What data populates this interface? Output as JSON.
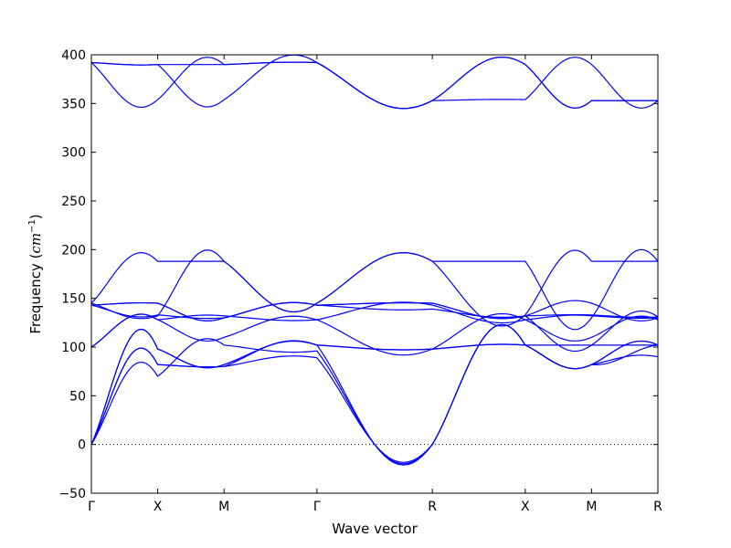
{
  "chart_data": {
    "type": "line",
    "title": "",
    "xlabel": "Wave vector",
    "ylabel": "Frequency (",
    "ylabel_unit": "cm",
    "ylabel_unit_exp": "−1",
    "ylabel_close": ")",
    "ylim": [
      -50,
      400
    ],
    "yticks": [
      -50,
      0,
      50,
      100,
      150,
      200,
      250,
      300,
      350,
      400
    ],
    "ytick_labels": [
      "−50",
      "0",
      "50",
      "100",
      "150",
      "200",
      "250",
      "300",
      "350",
      "400"
    ],
    "x_positions": [
      0,
      0.5,
      1.0,
      1.7,
      2.57,
      3.27,
      3.77,
      4.27
    ],
    "xticks": [
      "Γ",
      "X",
      "M",
      "Γ",
      "R",
      "X",
      "M",
      "R"
    ],
    "xlim": [
      0,
      4.27
    ],
    "line_color": "#0000ff",
    "zero_line": true,
    "grid": false,
    "series": [
      {
        "segments": [
          [
            0,
            98,
            98
          ],
          [
            98,
            82,
            82
          ],
          [
            82,
            102,
            102
          ],
          [
            102,
            98,
            98
          ],
          [
            98,
            102,
            102
          ],
          [
            102,
            102,
            102
          ],
          [
            102,
            102,
            102
          ]
        ]
      },
      {
        "segments": [
          [
            0,
            98,
            98
          ],
          [
            98,
            82,
            82
          ],
          [
            82,
            102,
            102
          ],
          [
            102,
            98,
            98
          ],
          [
            98,
            102,
            102
          ],
          [
            102,
            82,
            82
          ],
          [
            82,
            90,
            102
          ]
        ]
      },
      {
        "segments": [
          [
            0,
            82,
            82
          ],
          [
            82,
            80,
            80
          ],
          [
            80,
            89,
            89
          ],
          [
            89,
            0,
            0
          ],
          [
            0,
            102,
            102
          ],
          [
            102,
            82,
            82
          ],
          [
            82,
            90,
            90
          ]
        ]
      },
      {
        "segments": [
          [
            0,
            82,
            82
          ],
          [
            82,
            80,
            80
          ],
          [
            80,
            102,
            102
          ],
          [
            102,
            0,
            0
          ],
          [
            0,
            102,
            102
          ],
          [
            102,
            82,
            82
          ],
          [
            82,
            102,
            102
          ]
        ]
      },
      {
        "segments": [
          [
            0,
            70,
            70
          ],
          [
            70,
            102,
            102
          ],
          [
            102,
            96,
            96
          ],
          [
            96,
            0,
            0
          ],
          [
            0,
            102,
            102
          ],
          [
            102,
            82,
            82
          ],
          [
            82,
            102,
            102
          ]
        ]
      },
      {
        "segments": [
          [
            100,
            128,
            128
          ],
          [
            128,
            110,
            110
          ],
          [
            110,
            128,
            128
          ],
          [
            128,
            98,
            98
          ],
          [
            98,
            128,
            128
          ],
          [
            128,
            110,
            110
          ],
          [
            110,
            128,
            128
          ]
        ]
      },
      {
        "segments": [
          [
            100,
            128,
            128
          ],
          [
            128,
            132,
            132
          ],
          [
            132,
            128,
            128
          ],
          [
            128,
            143,
            143
          ],
          [
            143,
            128,
            128
          ],
          [
            128,
            132,
            132
          ],
          [
            132,
            130,
            130
          ]
        ]
      },
      {
        "segments": [
          [
            143,
            145,
            145
          ],
          [
            145,
            130,
            130
          ],
          [
            130,
            143,
            143
          ],
          [
            143,
            145,
            145
          ],
          [
            145,
            132,
            132
          ],
          [
            132,
            145,
            145
          ],
          [
            145,
            130,
            130
          ]
        ]
      },
      {
        "segments": [
          [
            143,
            145,
            145
          ],
          [
            145,
            130,
            130
          ],
          [
            130,
            143,
            143
          ],
          [
            143,
            145,
            145
          ],
          [
            145,
            132,
            132
          ],
          [
            132,
            102,
            102
          ],
          [
            102,
            131,
            131
          ]
        ]
      },
      {
        "segments": [
          [
            143,
            133,
            133
          ],
          [
            133,
            130,
            130
          ],
          [
            130,
            143,
            143
          ],
          [
            143,
            139,
            139
          ],
          [
            139,
            132,
            132
          ],
          [
            132,
            133,
            133
          ],
          [
            133,
            131,
            131
          ]
        ]
      },
      {
        "segments": [
          [
            145,
            132,
            132
          ],
          [
            132,
            188,
            188
          ],
          [
            188,
            145,
            145
          ],
          [
            145,
            188,
            188
          ],
          [
            188,
            188,
            188
          ],
          [
            188,
            130,
            130
          ],
          [
            130,
            188,
            188
          ]
        ]
      },
      {
        "segments": [
          [
            145,
            188,
            188
          ],
          [
            188,
            188,
            188
          ],
          [
            188,
            145,
            145
          ],
          [
            145,
            188,
            188
          ],
          [
            188,
            133,
            133
          ],
          [
            133,
            188,
            188
          ],
          [
            188,
            188,
            188
          ]
        ]
      },
      {
        "segments": [
          [
            392,
            390,
            390
          ],
          [
            390,
            354,
            354
          ],
          [
            354,
            392,
            392
          ],
          [
            392,
            353,
            353
          ],
          [
            353,
            390,
            390
          ],
          [
            390,
            353,
            353
          ],
          [
            353,
            353,
            353
          ]
        ]
      },
      {
        "segments": [
          [
            392,
            354,
            354
          ],
          [
            354,
            390,
            390
          ],
          [
            390,
            392,
            392
          ],
          [
            392,
            353,
            353
          ],
          [
            353,
            354,
            354
          ],
          [
            354,
            390,
            390
          ],
          [
            390,
            353,
            353
          ]
        ]
      },
      {
        "segments": [
          [
            392,
            390,
            390
          ],
          [
            390,
            390,
            390
          ],
          [
            390,
            392,
            392
          ],
          [
            392,
            353,
            353
          ],
          [
            353,
            390,
            390
          ],
          [
            390,
            353,
            353
          ],
          [
            353,
            353,
            353
          ]
        ]
      }
    ]
  }
}
